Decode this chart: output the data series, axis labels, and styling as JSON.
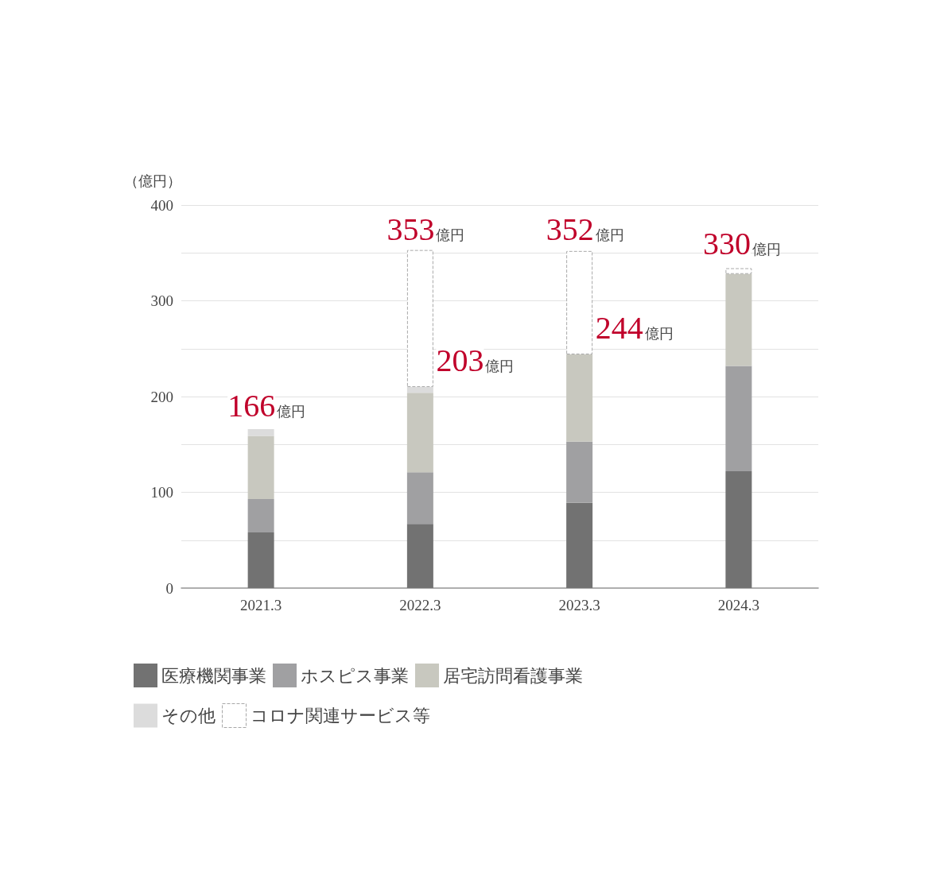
{
  "chart_data": {
    "type": "bar",
    "stacked": true,
    "ylabel": "（億円）",
    "categories": [
      "2021.3",
      "2022.3",
      "2023.3",
      "2024.3"
    ],
    "series": [
      {
        "name": "医療機関事業",
        "color": "#727272",
        "values": [
          58,
          67,
          89,
          122
        ]
      },
      {
        "name": "ホスピス事業",
        "color": "#a0a0a2",
        "values": [
          35,
          54,
          64,
          110
        ]
      },
      {
        "name": "居宅訪問看護事業",
        "color": "#c8c8bf",
        "values": [
          66,
          83,
          91,
          96
        ]
      },
      {
        "name": "その他",
        "color": "#dcdcdc",
        "values": [
          7,
          6,
          null,
          null
        ]
      },
      {
        "name": "コロナ関連サービス等",
        "color": "#ffffff",
        "line_style": "dashed",
        "values": [
          null,
          143,
          108,
          6
        ]
      }
    ],
    "ylim": [
      0,
      400
    ],
    "yticks": [
      0,
      {
        "value": 50,
        "label": null
      },
      100,
      {
        "value": 150,
        "label": null
      },
      200,
      {
        "value": 250,
        "label": null
      },
      300,
      {
        "value": 350,
        "label": null
      },
      400
    ],
    "grid": "y",
    "legend": "bottom",
    "annotations": [
      "166億円",
      "353億円",
      "203億円",
      "352億円",
      "244億円",
      "330億円"
    ]
  }
}
